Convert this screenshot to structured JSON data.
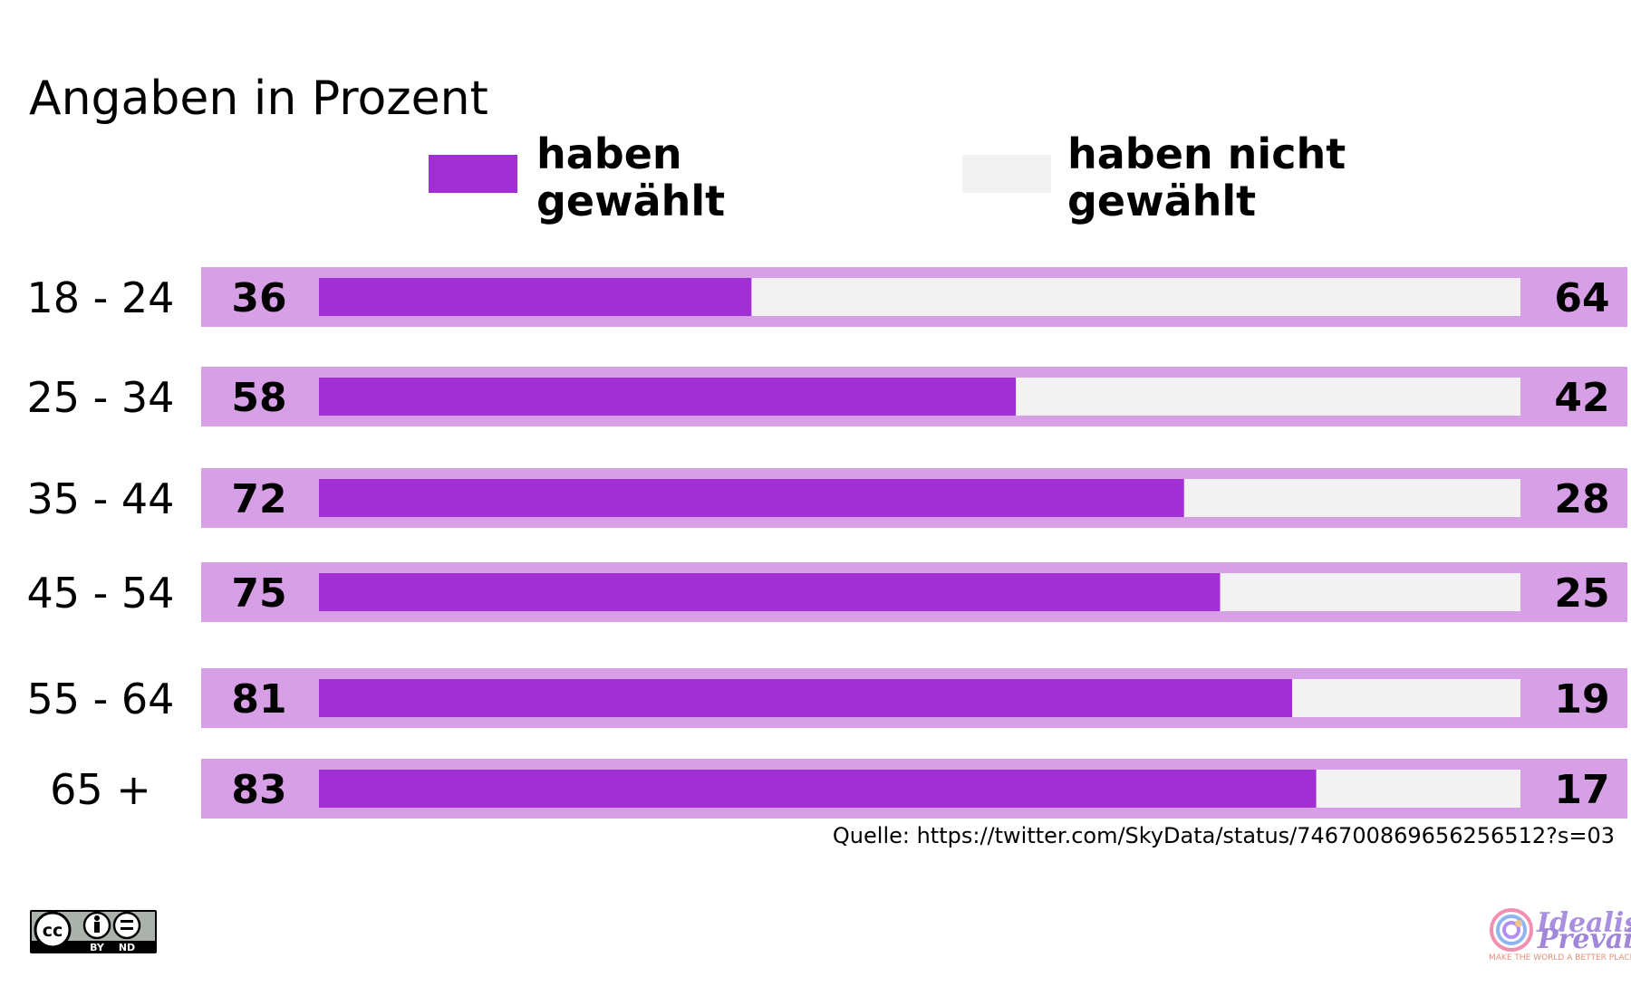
{
  "subtitle": "Angaben in Prozent",
  "legend": [
    {
      "line1": "haben",
      "line2": "gewählt",
      "color": "#a12fd4"
    },
    {
      "line1": "haben nicht",
      "line2": "gewählt",
      "color": "#f2f2f2"
    }
  ],
  "chart_data": {
    "type": "bar",
    "stacked": true,
    "orientation": "horizontal",
    "categories": [
      "18 - 24",
      "25 - 34",
      "35 - 44",
      "45 - 54",
      "55 - 64",
      "65 +"
    ],
    "series": [
      {
        "name": "haben gewählt",
        "values": [
          36,
          58,
          72,
          75,
          81,
          83
        ],
        "color": "#a12fd4"
      },
      {
        "name": "haben nicht gewählt",
        "values": [
          64,
          42,
          28,
          25,
          19,
          17
        ],
        "color": "#f2f2f2"
      }
    ],
    "xlim": [
      0,
      100
    ],
    "row_background": "#d79fe6",
    "grid": false
  },
  "source": "Quelle: https://twitter.com/SkyData/status/746700869656256512?s=03",
  "license": {
    "by": "BY",
    "nd": "ND",
    "icon": "cc-by-nd-icon"
  },
  "logo": {
    "line1": "Idealism",
    "line2": "Prevails",
    "tagline": "MAKE THE WORLD A BETTER PLACE !"
  }
}
